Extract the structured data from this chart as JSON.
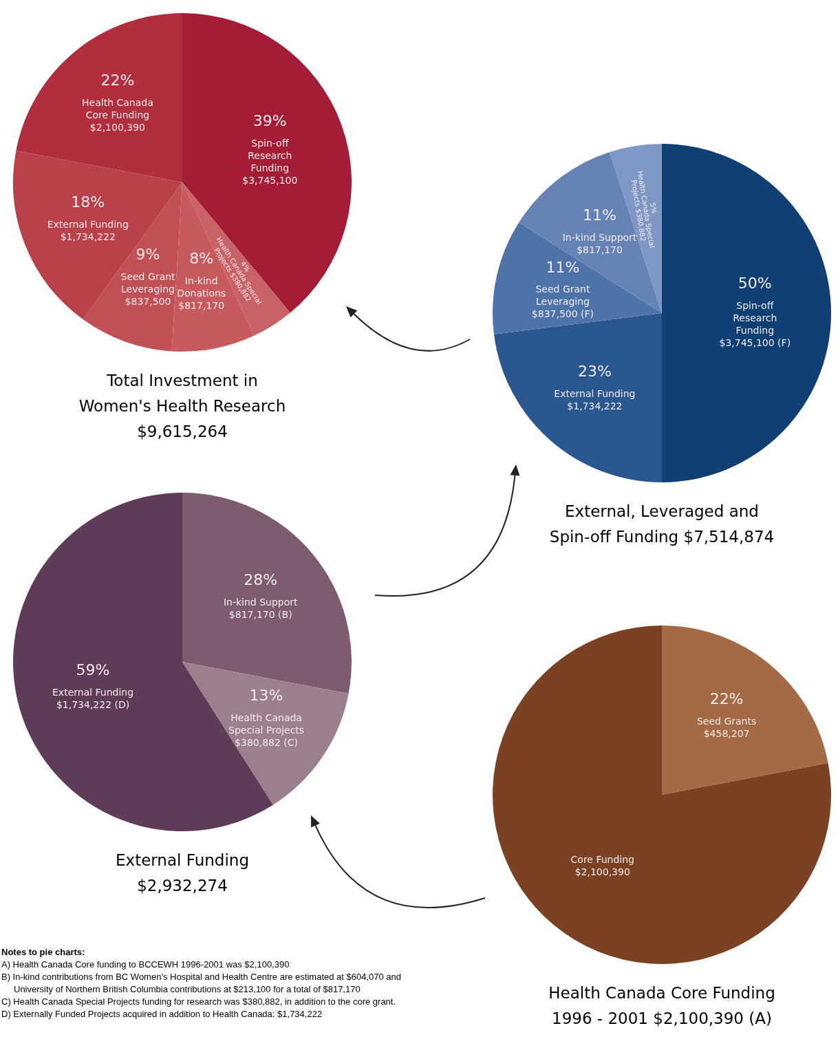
{
  "chart_data": [
    {
      "type": "pie",
      "title": "Total Investment in Women's Health Research $9,615,264",
      "categories": [
        "Spin-off Research Funding $3,745,100",
        "Health Canada Special Projects $380,882",
        "In-kind Donations $817,170",
        "Seed Grant Leveraging $837,500",
        "External Funding $1,734,222",
        "Health Canada Core Funding $2,100,390"
      ],
      "values": [
        39,
        4,
        8,
        9,
        18,
        22
      ],
      "colors": [
        "#a51c36",
        "#c96268",
        "#c65a5e",
        "#c05056",
        "#b8414a",
        "#b02e3e"
      ],
      "value_labels": [
        "39%",
        "4%",
        "8%",
        "9%",
        "18%",
        "22%"
      ]
    },
    {
      "type": "pie",
      "title": "External, Leveraged and Spin-off Funding $7,514,874",
      "categories": [
        "Spin-off Research Funding $3,745,100 (F)",
        "External Funding $1,734,222",
        "Seed Grant Leveraging $837,500 (F)",
        "In-kind Support $817,170",
        "Health Canada Special Projects $380,882"
      ],
      "values": [
        50,
        23,
        11,
        11,
        5
      ],
      "colors": [
        "#0f3f73",
        "#2a5790",
        "#4e73a8",
        "#6583b5",
        "#7f97c4"
      ],
      "value_labels": [
        "50%",
        "23%",
        "11%",
        "11%",
        "5%"
      ]
    },
    {
      "type": "pie",
      "title": "External Funding $2,932,274",
      "categories": [
        "In-kind Support $817,170 (B)",
        "Health Canada Special Projects $380,882 (C)",
        "External Funding $1,734,222 (D)"
      ],
      "values": [
        28,
        13,
        59
      ],
      "colors": [
        "#7d5c70",
        "#9b7f8f",
        "#5e3c58"
      ],
      "value_labels": [
        "28%",
        "13%",
        "59%"
      ]
    },
    {
      "type": "pie",
      "title": "Health Canada Core Funding 1996 - 2001 $2,100,390 (A)",
      "categories": [
        "Seed Grants $458,207",
        "Core Funding $2,100,390"
      ],
      "values": [
        22,
        78
      ],
      "value_labels": [
        "22%",
        null
      ],
      "colors": [
        "#a36a45",
        "#7a4222"
      ]
    },
    {
      "type": "other",
      "title": "Notes to pie charts:",
      "annotations": [
        "A) Health Canada Core funding to BCCEWH 1996-2001 was $2,100,390",
        "B) In-kind contributions from BC Women's Hospital and Health Centre are estimated at $604,070 and University of Northern British Columbia contributions at $213,100 for a total of $817,170",
        "C) Health Canada Special Projects funding for research was $380,882, in addition to the core grant.",
        "D) Externally Funded Projects acquired in addition to Health Canada: $1,734,222"
      ]
    }
  ]
}
